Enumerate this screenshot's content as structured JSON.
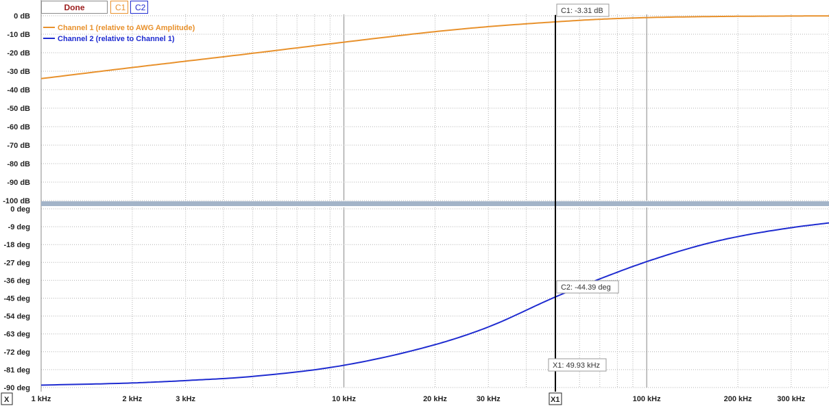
{
  "toolbar": {
    "done_label": "Done",
    "c1_label": "C1",
    "c2_label": "C2"
  },
  "x_marker_label": "X",
  "x1_marker_label": "X1",
  "readouts": {
    "c1": "C1: -3.31 dB",
    "c2": "C2: -44.39 deg",
    "x1": "X1: 49.93 kHz"
  },
  "colors": {
    "channel1": "#e8912c",
    "channel2": "#1e2bd0",
    "divider": "#a3b4c8",
    "cursor": "#000000",
    "grid": "#b0b0b0"
  },
  "chart_data": [
    {
      "type": "line",
      "xscale": "log",
      "xlim": [
        1000,
        400000
      ],
      "ylim": [
        -100,
        0
      ],
      "yticks": [
        {
          "v": 0,
          "label": "0 dB"
        },
        {
          "v": -10,
          "label": "-10 dB"
        },
        {
          "v": -20,
          "label": "-20 dB"
        },
        {
          "v": -30,
          "label": "-30 dB"
        },
        {
          "v": -40,
          "label": "-40 dB"
        },
        {
          "v": -50,
          "label": "-50 dB"
        },
        {
          "v": -60,
          "label": "-60 dB"
        },
        {
          "v": -70,
          "label": "-70 dB"
        },
        {
          "v": -80,
          "label": "-80 dB"
        },
        {
          "v": -90,
          "label": "-90 dB"
        },
        {
          "v": -100,
          "label": "-100 dB"
        }
      ],
      "legend_position": "top-left",
      "series": [
        {
          "name": "Channel 1 (relative to AWG Amplitude)",
          "x": [
            1000,
            2000,
            3000,
            5000,
            10000,
            20000,
            30000,
            49930,
            70000,
            100000,
            150000,
            200000,
            300000,
            400000
          ],
          "y": [
            -34,
            -28,
            -24.6,
            -20.3,
            -14.3,
            -8.6,
            -5.9,
            -3.31,
            -1.9,
            -1,
            -0.5,
            -0.3,
            -0.15,
            -0.1
          ]
        }
      ]
    },
    {
      "type": "line",
      "xscale": "log",
      "xlim": [
        1000,
        400000
      ],
      "ylim": [
        -90,
        0
      ],
      "yticks": [
        {
          "v": 0,
          "label": "0 deg"
        },
        {
          "v": -9,
          "label": "-9 deg"
        },
        {
          "v": -18,
          "label": "-18 deg"
        },
        {
          "v": -27,
          "label": "-27 deg"
        },
        {
          "v": -36,
          "label": "-36 deg"
        },
        {
          "v": -45,
          "label": "-45 deg"
        },
        {
          "v": -54,
          "label": "-54 deg"
        },
        {
          "v": -63,
          "label": "-63 deg"
        },
        {
          "v": -72,
          "label": "-72 deg"
        },
        {
          "v": -81,
          "label": "-81 deg"
        },
        {
          "v": -90,
          "label": "-90 deg"
        }
      ],
      "xticks": [
        {
          "v": 1000,
          "label": "1 kHz"
        },
        {
          "v": 2000,
          "label": "2 kHz"
        },
        {
          "v": 3000,
          "label": "3 kHz"
        },
        {
          "v": 10000,
          "label": "10 kHz"
        },
        {
          "v": 20000,
          "label": "20 kHz"
        },
        {
          "v": 30000,
          "label": "30 kHz"
        },
        {
          "v": 100000,
          "label": "100 kHz"
        },
        {
          "v": 200000,
          "label": "200 kHz"
        },
        {
          "v": 300000,
          "label": "300 kHz"
        }
      ],
      "series": [
        {
          "name": "Channel 2 (relative to Channel 1)",
          "x": [
            1000,
            2000,
            3000,
            5000,
            10000,
            20000,
            30000,
            49930,
            70000,
            100000,
            150000,
            200000,
            300000,
            400000
          ],
          "y": [
            -88.8,
            -87.7,
            -86.5,
            -84.4,
            -78.8,
            -68.4,
            -59.5,
            -44.39,
            -35.3,
            -26.6,
            -18.4,
            -14,
            -9.5,
            -7.1
          ]
        }
      ],
      "cursor_x": 49930
    }
  ]
}
